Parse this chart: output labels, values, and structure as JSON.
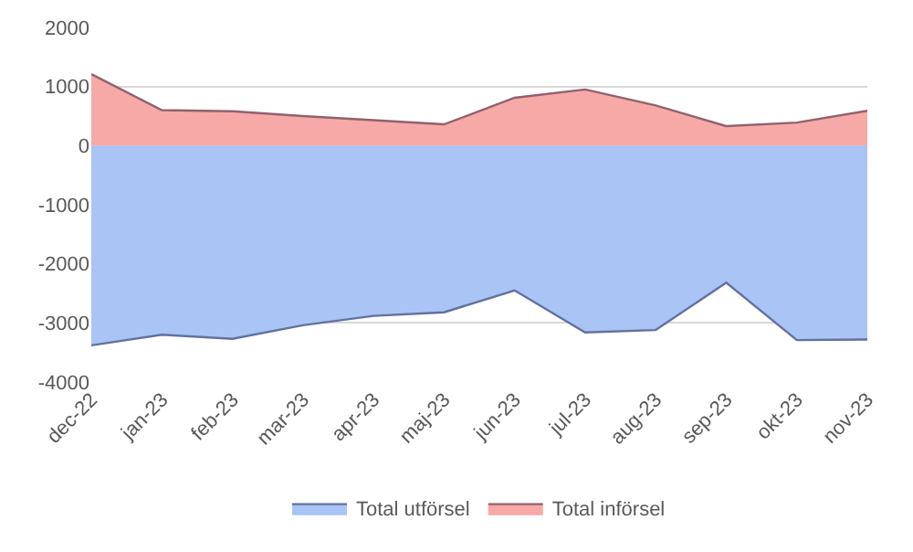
{
  "chart_data": {
    "type": "area",
    "categories": [
      "dec-22",
      "jan-23",
      "feb-23",
      "mar-23",
      "apr-23",
      "maj-23",
      "jun-23",
      "jul-23",
      "aug-23",
      "sep-23",
      "okt-23",
      "nov-23"
    ],
    "series": [
      {
        "name": "Total utförsel",
        "color": "#a9c4f5",
        "values": [
          -3380,
          -3200,
          -3270,
          -3040,
          -2880,
          -2820,
          -2450,
          -3160,
          -3120,
          -2320,
          -3290,
          -3280
        ]
      },
      {
        "name": "Total införsel",
        "color": "#f7a9a8",
        "values": [
          1210,
          600,
          580,
          500,
          430,
          360,
          810,
          950,
          680,
          330,
          390,
          590
        ]
      }
    ],
    "ylim": [
      -4000,
      2000
    ],
    "yticks": [
      -4000,
      -3000,
      -2000,
      -1000,
      0,
      1000,
      2000
    ],
    "grid": "y",
    "legend": "bottom",
    "marker": "none",
    "line_style": "solid"
  }
}
